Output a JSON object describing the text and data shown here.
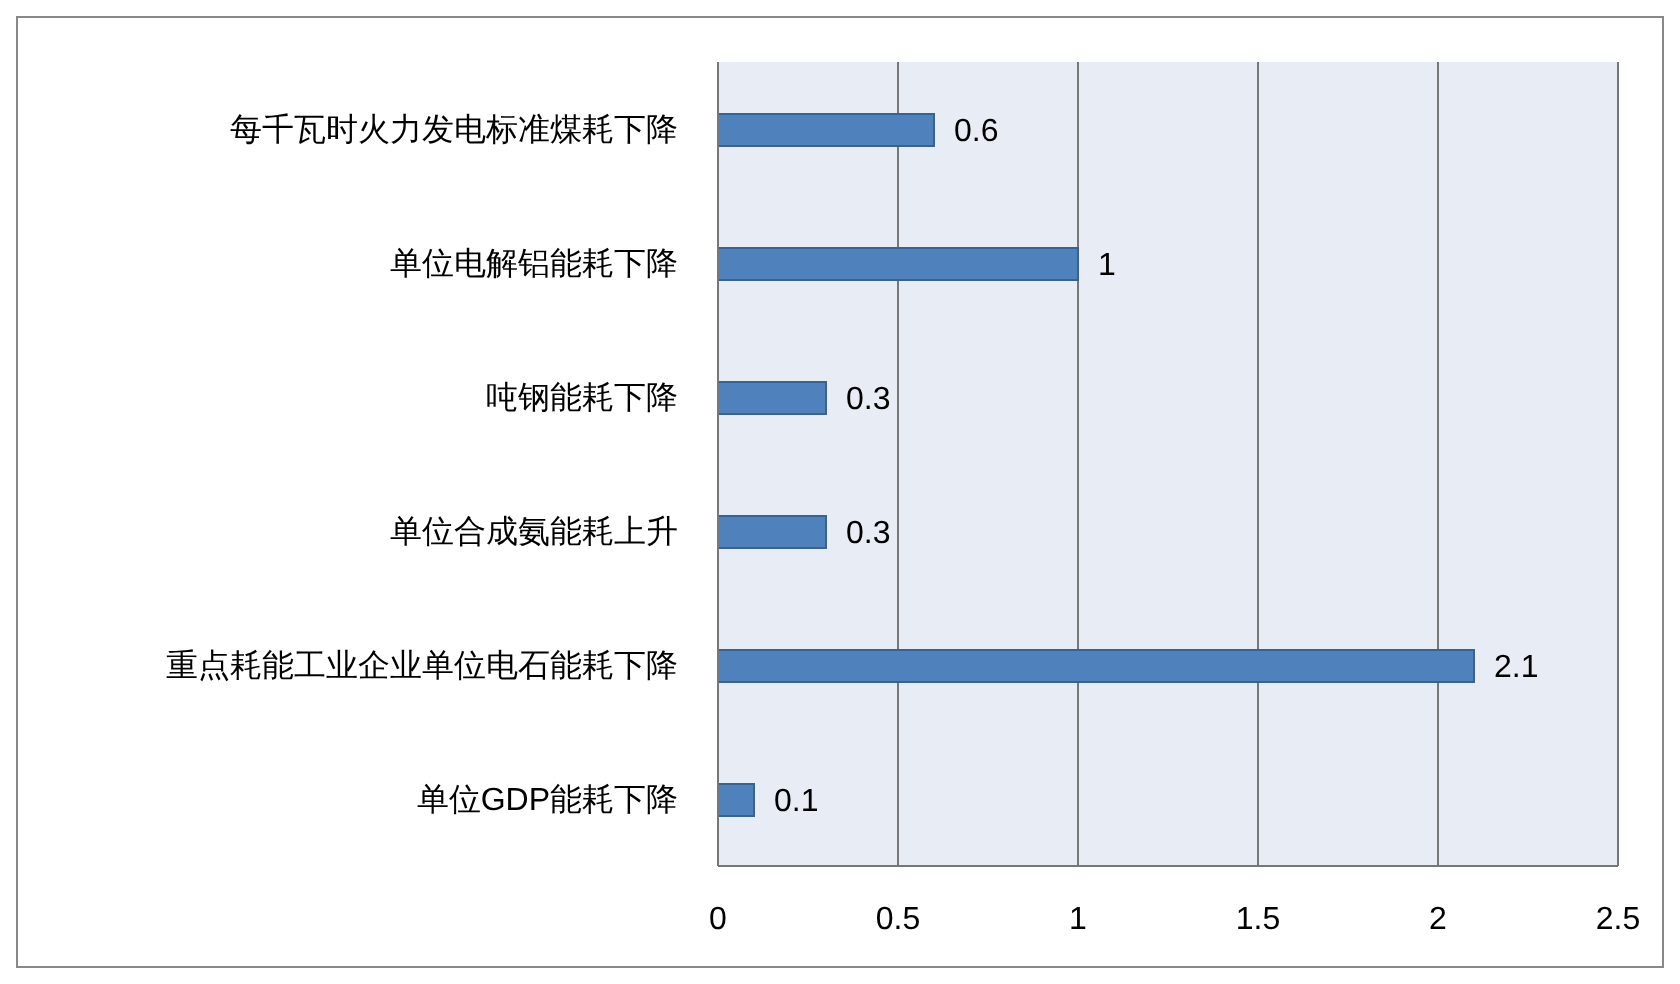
{
  "chart_data": {
    "type": "bar",
    "orientation": "horizontal",
    "categories": [
      "每千瓦时火力发电标准煤耗下降",
      "单位电解铝能耗下降",
      "吨钢能耗下降",
      "单位合成氨能耗上升",
      "重点耗能工业企业单位电石能耗下降",
      "单位GDP能耗下降"
    ],
    "values": [
      0.6,
      1,
      0.3,
      0.3,
      2.1,
      0.1
    ],
    "color": "#4f81bd",
    "xlim": [
      0,
      2.5
    ],
    "xticks": [
      0,
      0.5,
      1,
      1.5,
      2,
      2.5
    ],
    "grid": "x",
    "data_labels": true,
    "legend": false
  }
}
